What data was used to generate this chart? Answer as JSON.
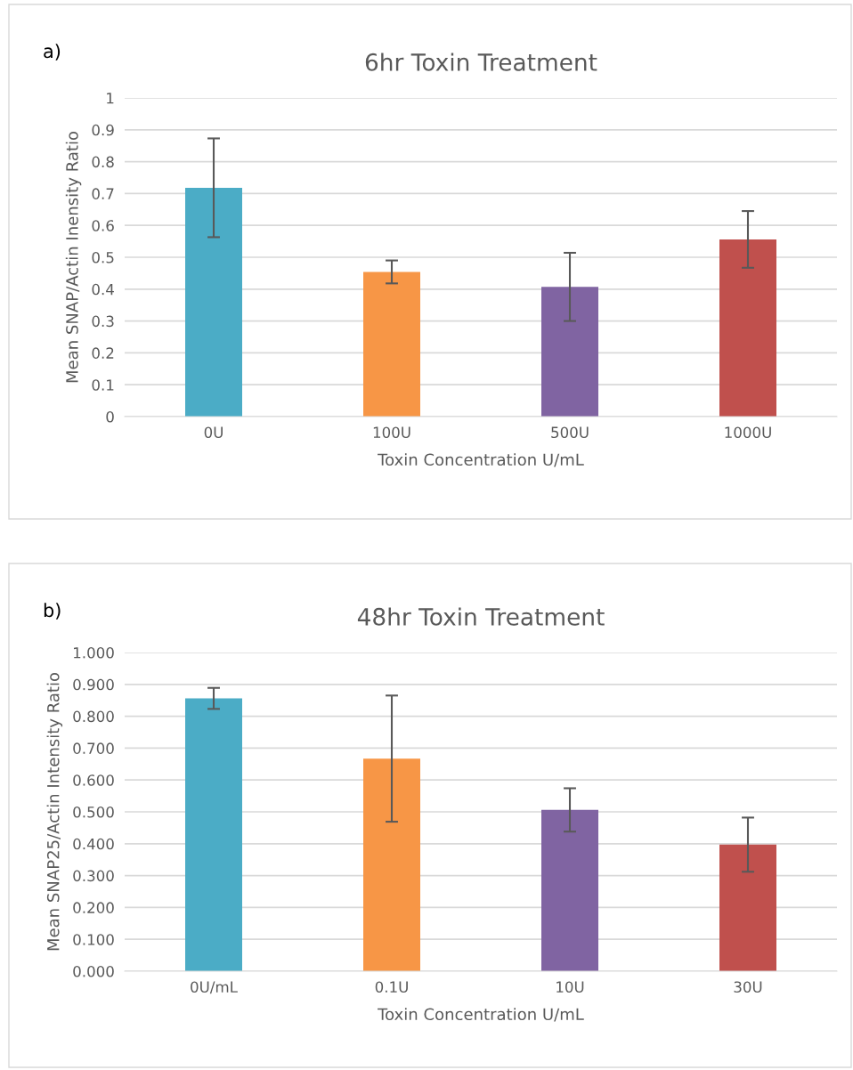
{
  "chart_data": [
    {
      "type": "bar",
      "title": "6hr Toxin Treatment",
      "xlabel": "Toxin Concentration U/mL",
      "ylabel": "Mean SNAP/Actin Inensity Ratio",
      "annotations": [
        "a)"
      ],
      "categories": [
        "0U",
        "100U",
        "500U",
        "1000U"
      ],
      "values": [
        0.718,
        0.454,
        0.407,
        0.556
      ],
      "errors": [
        0.155,
        0.036,
        0.107,
        0.089
      ],
      "colors": [
        "#4bacc6",
        "#f79646",
        "#8064a2",
        "#c0504d"
      ],
      "ylim": [
        0,
        1
      ],
      "yticks": [
        0,
        0.1,
        0.2,
        0.3,
        0.4,
        0.5,
        0.6,
        0.7,
        0.8,
        0.9,
        1
      ],
      "grid": "y"
    },
    {
      "type": "bar",
      "title": "48hr Toxin Treatment",
      "xlabel": "Toxin Concentration U/mL",
      "ylabel": "Mean SNAP25/Actin Intensity Ratio",
      "annotations": [
        "b)"
      ],
      "categories": [
        "0U/mL",
        "0.1U",
        "10U",
        "30U"
      ],
      "values": [
        0.856,
        0.667,
        0.506,
        0.397
      ],
      "errors": [
        0.033,
        0.198,
        0.068,
        0.085
      ],
      "colors": [
        "#4bacc6",
        "#f79646",
        "#8064a2",
        "#c0504d"
      ],
      "ylim": [
        0,
        1
      ],
      "yticks": [
        {
          "value": 0,
          "label": "0.000"
        },
        {
          "value": 0.1,
          "label": "0.100"
        },
        {
          "value": 0.2,
          "label": "0.200"
        },
        {
          "value": 0.3,
          "label": "0.300"
        },
        {
          "value": 0.4,
          "label": "0.400"
        },
        {
          "value": 0.5,
          "label": "0.500"
        },
        {
          "value": 0.6,
          "label": "0.600"
        },
        {
          "value": 0.7,
          "label": "0.700"
        },
        {
          "value": 0.8,
          "label": "0.800"
        },
        {
          "value": 0.9,
          "label": "0.900"
        },
        {
          "value": 1,
          "label": "1.000"
        }
      ],
      "grid": "y"
    }
  ]
}
